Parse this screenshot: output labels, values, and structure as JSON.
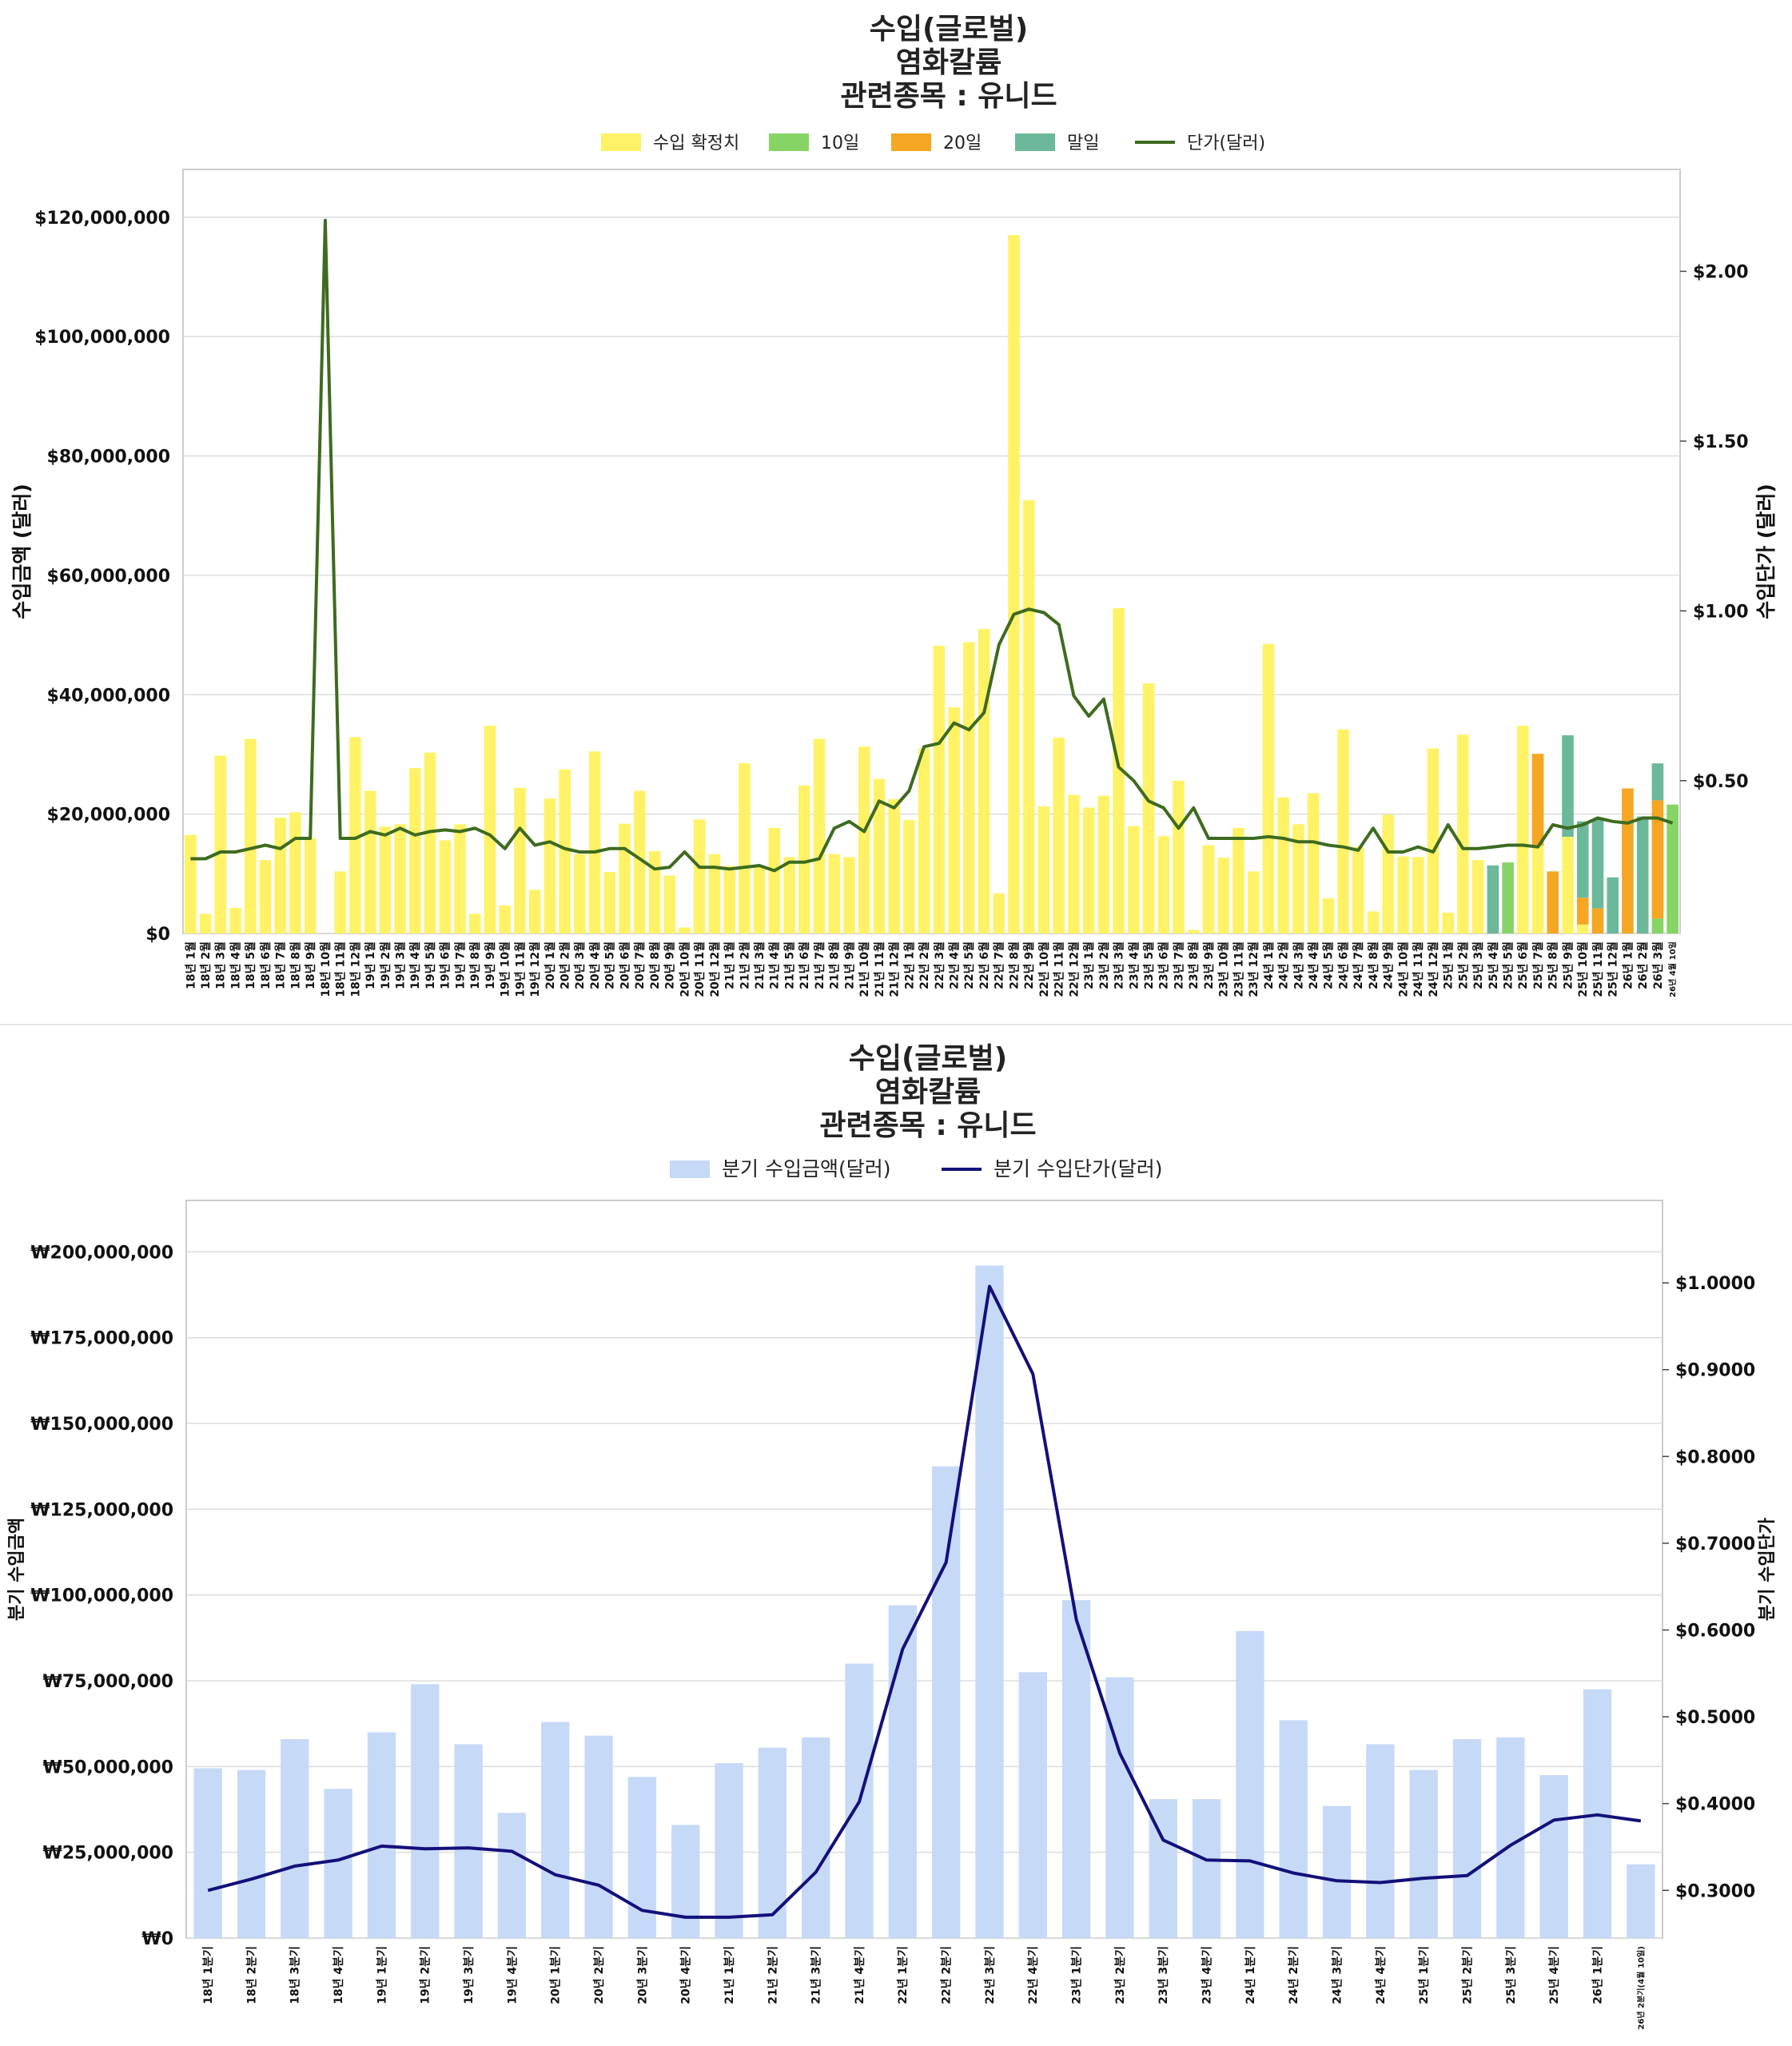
{
  "chart_data": [
    {
      "type": "bar",
      "title": [
        "수입(글로벌)",
        "염화칼륨",
        "관련종목 : 유니드"
      ],
      "ylabel": "수입금액 (달러)",
      "y2label": "수입단가 (달러)",
      "ylim": [
        0,
        128000000
      ],
      "y2lim": [
        0.05,
        2.3
      ],
      "yticks": [
        0,
        20000000,
        40000000,
        60000000,
        80000000,
        100000000,
        120000000
      ],
      "ytick_labels": [
        "$0",
        "$20,000,000",
        "$40,000,000",
        "$60,000,000",
        "$80,000,000",
        "$100,000,000",
        "$120,000,000"
      ],
      "y2ticks": [
        0.5,
        1.0,
        1.5,
        2.0
      ],
      "y2tick_labels": [
        "$0.50",
        "$1.00",
        "$1.50",
        "$2.00"
      ],
      "grid": true,
      "legend": {
        "placement": "top-center",
        "entries": [
          {
            "label": "수입 확정치",
            "color": "#fff266",
            "kind": "bar"
          },
          {
            "label": "10일",
            "color": "#86d466",
            "kind": "bar"
          },
          {
            "label": "20일",
            "color": "#f5a623",
            "kind": "bar"
          },
          {
            "label": "말일",
            "color": "#6cb89a",
            "kind": "bar"
          },
          {
            "label": "단가(달러)",
            "color": "#3d6b1f",
            "kind": "line"
          }
        ]
      },
      "categories": [
        "18년 1월",
        "18년 2월",
        "18년 3월",
        "18년 4월",
        "18년 5월",
        "18년 6월",
        "18년 7월",
        "18년 8월",
        "18년 9월",
        "18년 10월",
        "18년 11월",
        "18년 12월",
        "19년 1월",
        "19년 2월",
        "19년 3월",
        "19년 4월",
        "19년 5월",
        "19년 6월",
        "19년 7월",
        "19년 8월",
        "19년 9월",
        "19년 10월",
        "19년 11월",
        "19년 12월",
        "20년 1월",
        "20년 2월",
        "20년 3월",
        "20년 4월",
        "20년 5월",
        "20년 6월",
        "20년 7월",
        "20년 8월",
        "20년 9월",
        "20년 10월",
        "20년 11월",
        "20년 12월",
        "21년 1월",
        "21년 2월",
        "21년 3월",
        "21년 4월",
        "21년 5월",
        "21년 6월",
        "21년 7월",
        "21년 8월",
        "21년 9월",
        "21년 10월",
        "21년 11월",
        "21년 12월",
        "22년 1월",
        "22년 2월",
        "22년 3월",
        "22년 4월",
        "22년 5월",
        "22년 6월",
        "22년 7월",
        "22년 8월",
        "22년 9월",
        "22년 10월",
        "22년 11월",
        "22년 12월",
        "23년 1월",
        "23년 2월",
        "23년 3월",
        "23년 4월",
        "23년 5월",
        "23년 6월",
        "23년 7월",
        "23년 8월",
        "23년 9월",
        "23년 10월",
        "23년 11월",
        "23년 12월",
        "24년 1월",
        "24년 2월",
        "24년 3월",
        "24년 4월",
        "24년 5월",
        "24년 6월",
        "24년 7월",
        "24년 8월",
        "24년 9월",
        "24년 10월",
        "24년 11월",
        "24년 12월",
        "25년 1월",
        "25년 2월",
        "25년 3월",
        "25년 4월",
        "25년 5월",
        "25년 6월",
        "25년 7월",
        "25년 8월",
        "25년 9월",
        "25년 10월",
        "25년 11월",
        "25년 12월",
        "26년 1월",
        "26년 2월",
        "26년 3월",
        "26년 4월 10일"
      ],
      "series": [
        {
          "name": "수입 확정치",
          "color": "#fff266",
          "values": [
            16500000,
            3300000,
            29800000,
            4300000,
            32600000,
            12300000,
            19400000,
            20300000,
            16000000,
            0,
            10400000,
            32900000,
            23900000,
            17900000,
            18300000,
            27700000,
            30300000,
            15600000,
            18300000,
            3300000,
            34800000,
            4700000,
            24400000,
            7300000,
            22600000,
            27500000,
            13300000,
            30500000,
            10300000,
            18400000,
            23900000,
            13800000,
            9700000,
            1000000,
            19100000,
            13300000,
            11300000,
            28500000,
            11300000,
            17700000,
            12800000,
            24800000,
            32600000,
            13300000,
            12800000,
            31300000,
            25900000,
            22500000,
            19000000,
            31000000,
            48200000,
            37900000,
            48800000,
            51000000,
            6700000,
            117000000,
            72600000,
            21300000,
            32800000,
            23200000,
            21100000,
            23100000,
            54500000,
            18000000,
            41900000,
            16300000,
            25600000,
            600000,
            14800000,
            12700000,
            17700000,
            10400000,
            48500000,
            22800000,
            18300000,
            23500000,
            5900000,
            34200000,
            14500000,
            3700000,
            19900000,
            12900000,
            12800000,
            31000000,
            3500000,
            33300000,
            12300000,
            0,
            0,
            34800000,
            14700000,
            0,
            16200000,
            1500000,
            0,
            0,
            0,
            0,
            0,
            0
          ]
        },
        {
          "name": "10일",
          "color": "#86d466",
          "values": [
            0,
            0,
            0,
            0,
            0,
            0,
            0,
            0,
            0,
            0,
            0,
            0,
            0,
            0,
            0,
            0,
            0,
            0,
            0,
            0,
            0,
            0,
            0,
            0,
            0,
            0,
            0,
            0,
            0,
            0,
            0,
            0,
            0,
            0,
            0,
            0,
            0,
            0,
            0,
            0,
            0,
            0,
            0,
            0,
            0,
            0,
            0,
            0,
            0,
            0,
            0,
            0,
            0,
            0,
            0,
            0,
            0,
            0,
            0,
            0,
            0,
            0,
            0,
            0,
            0,
            0,
            0,
            0,
            0,
            0,
            0,
            0,
            0,
            0,
            0,
            0,
            0,
            0,
            0,
            0,
            0,
            0,
            0,
            0,
            0,
            0,
            0,
            0,
            11900000,
            0,
            0,
            0,
            0,
            0,
            0,
            0,
            0,
            0,
            2500000,
            21600000
          ]
        },
        {
          "name": "20일",
          "color": "#f5a623",
          "values": [
            0,
            0,
            0,
            0,
            0,
            0,
            0,
            0,
            0,
            0,
            0,
            0,
            0,
            0,
            0,
            0,
            0,
            0,
            0,
            0,
            0,
            0,
            0,
            0,
            0,
            0,
            0,
            0,
            0,
            0,
            0,
            0,
            0,
            0,
            0,
            0,
            0,
            0,
            0,
            0,
            0,
            0,
            0,
            0,
            0,
            0,
            0,
            0,
            0,
            0,
            0,
            0,
            0,
            0,
            0,
            0,
            0,
            0,
            0,
            0,
            0,
            0,
            0,
            0,
            0,
            0,
            0,
            0,
            0,
            0,
            0,
            0,
            0,
            0,
            0,
            0,
            0,
            0,
            0,
            0,
            0,
            0,
            0,
            0,
            0,
            0,
            0,
            0,
            0,
            0,
            15400000,
            10400000,
            0,
            4500000,
            4200000,
            0,
            24300000,
            0,
            19800000,
            0
          ]
        },
        {
          "name": "말일",
          "color": "#6cb89a",
          "values": [
            0,
            0,
            0,
            0,
            0,
            0,
            0,
            0,
            0,
            0,
            0,
            0,
            0,
            0,
            0,
            0,
            0,
            0,
            0,
            0,
            0,
            0,
            0,
            0,
            0,
            0,
            0,
            0,
            0,
            0,
            0,
            0,
            0,
            0,
            0,
            0,
            0,
            0,
            0,
            0,
            0,
            0,
            0,
            0,
            0,
            0,
            0,
            0,
            0,
            0,
            0,
            0,
            0,
            0,
            0,
            0,
            0,
            0,
            0,
            0,
            0,
            0,
            0,
            0,
            0,
            0,
            0,
            0,
            0,
            0,
            0,
            0,
            0,
            0,
            0,
            0,
            0,
            0,
            0,
            0,
            0,
            0,
            0,
            0,
            0,
            0,
            0,
            11400000,
            0,
            0,
            0,
            0,
            17000000,
            12800000,
            14900000,
            9400000,
            0,
            19600000,
            6200000,
            0
          ]
        },
        {
          "name": "단가(달러)",
          "color": "#3d6b1f",
          "axis": "right",
          "kind": "line",
          "values": [
            0.27,
            0.27,
            0.29,
            0.29,
            0.3,
            0.31,
            0.3,
            0.33,
            0.33,
            2.15,
            0.33,
            0.33,
            0.35,
            0.34,
            0.36,
            0.34,
            0.35,
            0.355,
            0.35,
            0.36,
            0.34,
            0.3,
            0.36,
            0.31,
            0.32,
            0.3,
            0.29,
            0.29,
            0.3,
            0.3,
            0.27,
            0.24,
            0.245,
            0.29,
            0.245,
            0.245,
            0.24,
            0.245,
            0.25,
            0.235,
            0.26,
            0.26,
            0.27,
            0.36,
            0.38,
            0.35,
            0.44,
            0.42,
            0.47,
            0.6,
            0.61,
            0.67,
            0.65,
            0.7,
            0.9,
            0.99,
            1.005,
            0.995,
            0.96,
            0.75,
            0.69,
            0.74,
            0.54,
            0.5,
            0.44,
            0.42,
            0.36,
            0.42,
            0.33,
            0.33,
            0.33,
            0.33,
            0.335,
            0.33,
            0.32,
            0.32,
            0.31,
            0.305,
            0.295,
            0.36,
            0.29,
            0.29,
            0.305,
            0.29,
            0.37,
            0.3,
            0.3,
            0.305,
            0.31,
            0.31,
            0.305,
            0.37,
            0.36,
            0.37,
            0.39,
            0.38,
            0.375,
            0.39,
            0.39,
            0.375
          ]
        }
      ]
    },
    {
      "type": "bar",
      "title": [
        "수입(글로벌)",
        "염화칼륨",
        "관련종목 : 유니드"
      ],
      "ylabel": "분기 수입금액",
      "y2label": "분기 수입단가",
      "ylim": [
        0,
        215000000
      ],
      "y2lim": [
        0.245,
        1.095
      ],
      "yticks": [
        0,
        25000000,
        50000000,
        75000000,
        100000000,
        125000000,
        150000000,
        175000000,
        200000000
      ],
      "ytick_labels": [
        "₩0",
        "₩25,000,000",
        "₩50,000,000",
        "₩75,000,000",
        "₩100,000,000",
        "₩125,000,000",
        "₩150,000,000",
        "₩175,000,000",
        "₩200,000,000"
      ],
      "y2ticks": [
        0.3,
        0.4,
        0.5,
        0.6,
        0.7,
        0.8,
        0.9,
        1.0
      ],
      "y2tick_labels": [
        "$0.3000",
        "$0.4000",
        "$0.5000",
        "$0.6000",
        "$0.7000",
        "$0.8000",
        "$0.9000",
        "$1.0000"
      ],
      "grid": true,
      "legend": {
        "placement": "top-center",
        "entries": [
          {
            "label": "분기 수입금액(달러)",
            "color": "#c6d9f7",
            "kind": "bar"
          },
          {
            "label": "분기 수입단가(달러)",
            "color": "#13107a",
            "kind": "line"
          }
        ]
      },
      "categories": [
        "18년 1분기",
        "18년 2분기",
        "18년 3분기",
        "18년 4분기",
        "19년 1분기",
        "19년 2분기",
        "19년 3분기",
        "19년 4분기",
        "20년 1분기",
        "20년 2분기",
        "20년 3분기",
        "20년 4분기",
        "21년 1분기",
        "21년 2분기",
        "21년 3분기",
        "21년 4분기",
        "22년 1분기",
        "22년 2분기",
        "22년 3분기",
        "22년 4분기",
        "23년 1분기",
        "23년 2분기",
        "23년 3분기",
        "23년 4분기",
        "24년 1분기",
        "24년 2분기",
        "24년 3분기",
        "24년 4분기",
        "25년 1분기",
        "25년 2분기",
        "25년 3분기",
        "25년 4분기",
        "26년 1분기",
        "26년 2분기(4월 10일)"
      ],
      "series": [
        {
          "name": "분기 수입금액(달러)",
          "color": "#c6d9f7",
          "values": [
            49500000,
            49000000,
            58000000,
            43500000,
            60000000,
            74000000,
            56500000,
            36500000,
            63000000,
            59000000,
            47000000,
            33000000,
            51000000,
            55500000,
            58500000,
            80000000,
            97000000,
            137500000,
            196000000,
            77500000,
            98500000,
            76000000,
            40500000,
            40500000,
            89500000,
            63500000,
            38500000,
            56500000,
            49000000,
            58000000,
            58500000,
            47500000,
            72500000,
            21500000
          ]
        },
        {
          "name": "분기 수입단가(달러)",
          "color": "#13107a",
          "axis": "right",
          "kind": "line",
          "values": [
            0.3,
            0.313,
            0.328,
            0.335,
            0.351,
            0.348,
            0.349,
            0.345,
            0.318,
            0.306,
            0.277,
            0.269,
            0.269,
            0.272,
            0.321,
            0.402,
            0.578,
            0.678,
            0.996,
            0.895,
            0.612,
            0.458,
            0.358,
            0.335,
            0.334,
            0.32,
            0.311,
            0.309,
            0.314,
            0.317,
            0.352,
            0.381,
            0.387,
            0.38
          ]
        }
      ]
    }
  ]
}
